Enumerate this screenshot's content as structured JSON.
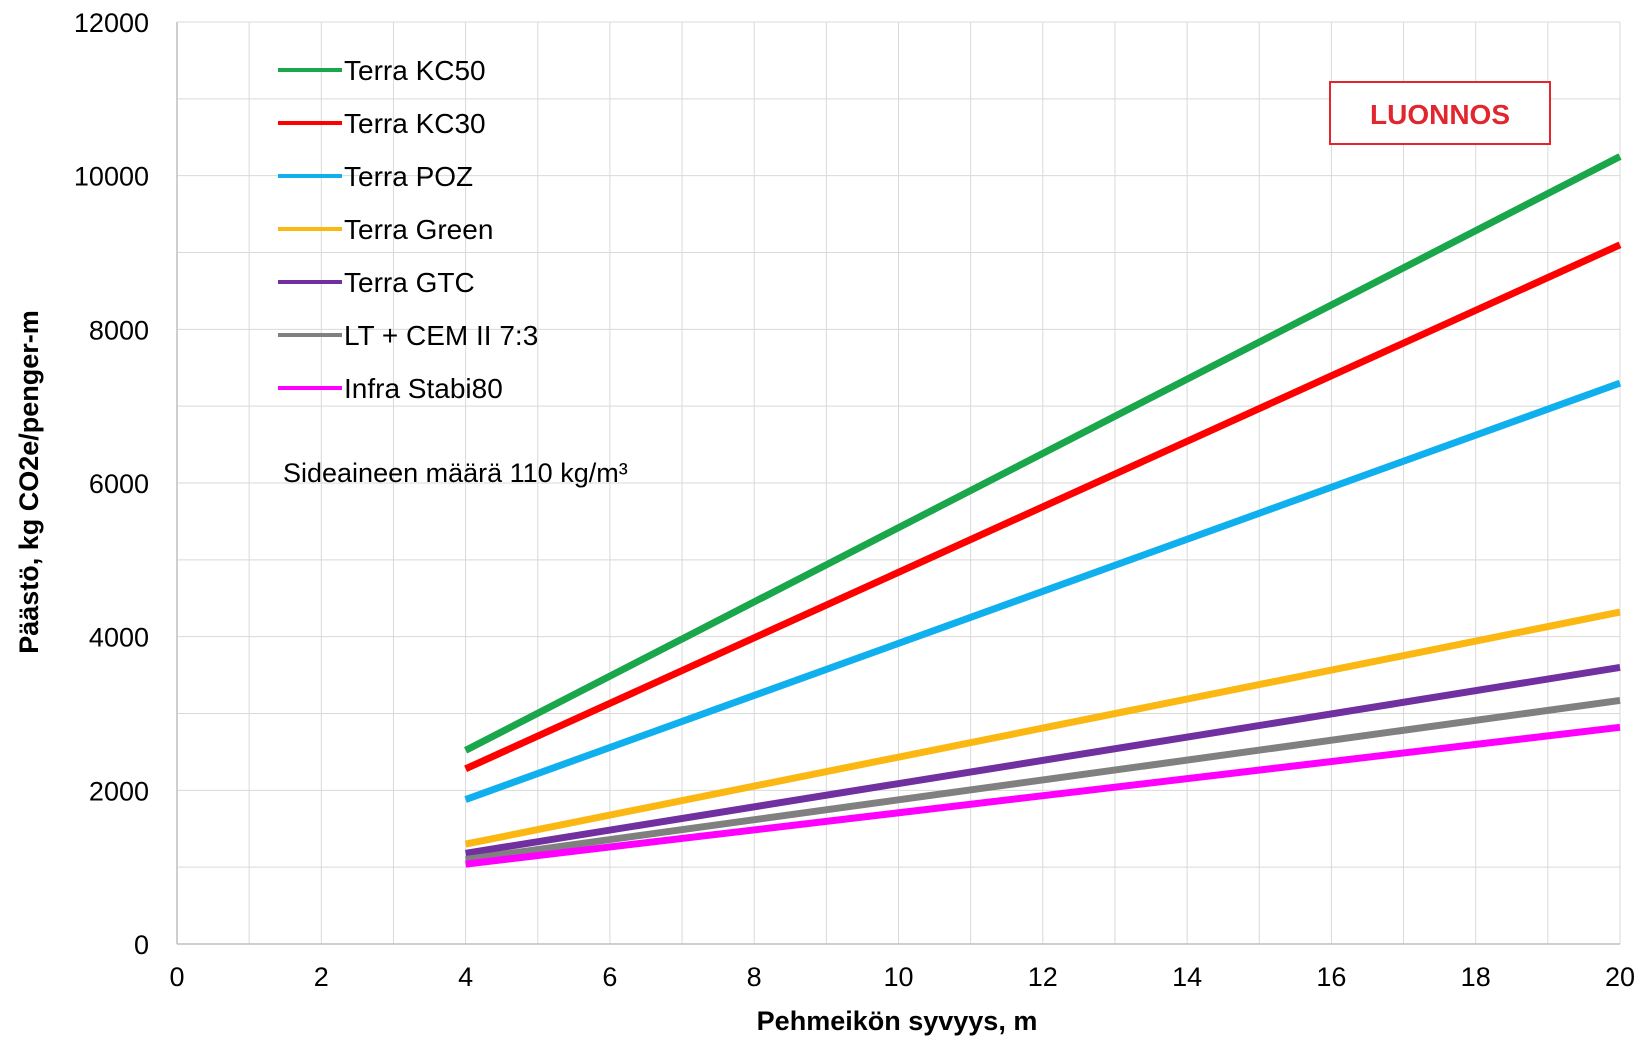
{
  "chart_data": {
    "type": "line",
    "title": "",
    "xlabel": "Pehmeikön syvyys, m",
    "ylabel": "Päästö, kg CO2e/penger-m",
    "xlim": [
      0,
      20
    ],
    "ylim": [
      0,
      12000
    ],
    "x_ticks": [
      "0",
      "2",
      "4",
      "6",
      "8",
      "10",
      "12",
      "14",
      "16",
      "18",
      "20"
    ],
    "y_ticks": [
      "0",
      "2000",
      "4000",
      "6000",
      "8000",
      "10000",
      "12000"
    ],
    "grid": true,
    "legend_position": "top-left",
    "series": [
      {
        "name": "Terra KC50",
        "color": "#1aa64b",
        "x": [
          4,
          20
        ],
        "y": [
          2520,
          10250
        ]
      },
      {
        "name": "Terra KC30",
        "color": "#ff0000",
        "x": [
          4,
          20
        ],
        "y": [
          2280,
          9100
        ]
      },
      {
        "name": "Terra POZ",
        "color": "#10b0ef",
        "x": [
          4,
          20
        ],
        "y": [
          1880,
          7300
        ]
      },
      {
        "name": "Terra Green",
        "color": "#fbb812",
        "x": [
          4,
          20
        ],
        "y": [
          1300,
          4320
        ]
      },
      {
        "name": "Terra GTC",
        "color": "#7030a0",
        "x": [
          4,
          20
        ],
        "y": [
          1180,
          3600
        ]
      },
      {
        "name": "LT + CEM II 7:3",
        "color": "#808080",
        "x": [
          4,
          20
        ],
        "y": [
          1100,
          3170
        ]
      },
      {
        "name": "Infra Stabi80",
        "color": "#ff00ff",
        "x": [
          4,
          20
        ],
        "y": [
          1040,
          2820
        ]
      }
    ],
    "annotations": {
      "binder_note": "Sideaineen määrä 110 kg/m³",
      "stamp": "LUONNOS"
    }
  },
  "colors": {
    "grid": "#d9d9d9",
    "axis": "#bfbfbf",
    "stamp": "#e1262e"
  }
}
